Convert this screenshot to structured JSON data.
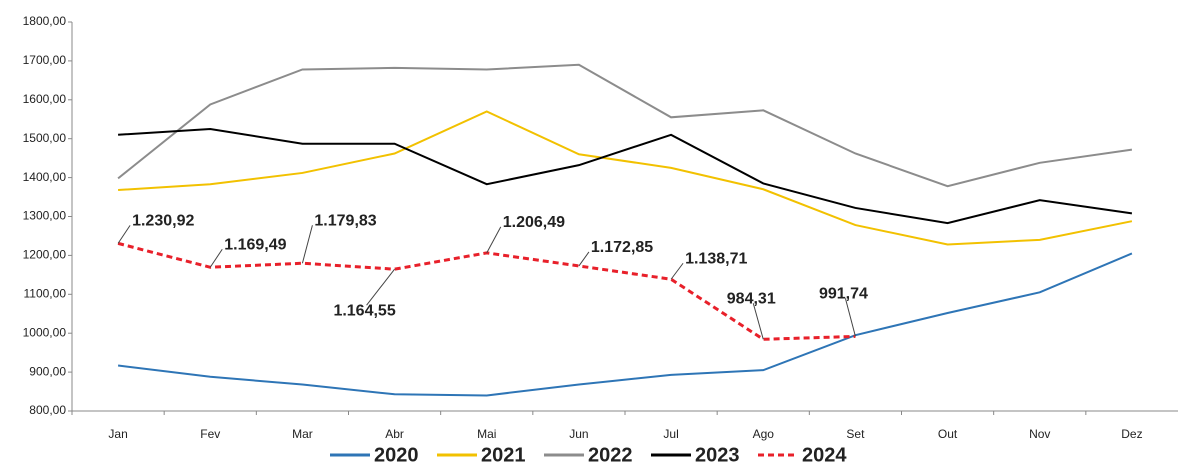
{
  "chart_data": {
    "type": "line",
    "categories": [
      "Jan",
      "Fev",
      "Mar",
      "Abr",
      "Mai",
      "Jun",
      "Jul",
      "Ago",
      "Set",
      "Out",
      "Nov",
      "Dez"
    ],
    "ylim": [
      800,
      1800
    ],
    "yticks": [
      {
        "value": 800,
        "label": "800,00"
      },
      {
        "value": 900,
        "label": "900,00"
      },
      {
        "value": 1000,
        "label": "1000,00"
      },
      {
        "value": 1100,
        "label": "1100,00"
      },
      {
        "value": 1200,
        "label": "1200,00"
      },
      {
        "value": 1300,
        "label": "1300,00"
      },
      {
        "value": 1400,
        "label": "1400,00"
      },
      {
        "value": 1500,
        "label": "1500,00"
      },
      {
        "value": 1600,
        "label": "1600,00"
      },
      {
        "value": 1700,
        "label": "1700,00"
      },
      {
        "value": 1800,
        "label": "1800,00"
      }
    ],
    "grid": false,
    "series": [
      {
        "name": "2020",
        "color": "#2e75b6",
        "line_style": "solid",
        "values": [
          917,
          888,
          868,
          843,
          840,
          868,
          893,
          905,
          995,
          1052,
          1105,
          1205
        ]
      },
      {
        "name": "2021",
        "color": "#f2c100",
        "line_style": "solid",
        "values": [
          1368,
          1383,
          1412,
          1462,
          1570,
          1460,
          1425,
          1370,
          1278,
          1228,
          1240,
          1288
        ]
      },
      {
        "name": "2022",
        "color": "#8c8c8c",
        "line_style": "solid",
        "values": [
          1398,
          1588,
          1678,
          1682,
          1678,
          1690,
          1555,
          1573,
          1462,
          1378,
          1438,
          1472
        ]
      },
      {
        "name": "2023",
        "color": "#000000",
        "line_style": "solid",
        "values": [
          1510,
          1525,
          1487,
          1487,
          1383,
          1432,
          1510,
          1385,
          1322,
          1283,
          1342,
          1308
        ]
      },
      {
        "name": "2024",
        "color": "#e8202a",
        "line_style": "dashed",
        "values": [
          1230.92,
          1169.49,
          1179.83,
          1164.55,
          1206.49,
          1172.85,
          1138.71,
          984.31,
          991.74,
          null,
          null,
          null
        ],
        "value_labels": [
          "1.230,92",
          "1.169,49",
          "1.179,83",
          "1.164,55",
          "1.206,49",
          "1.172,85",
          "1.138,71",
          "984,31",
          "991,74",
          null,
          null,
          null
        ]
      }
    ]
  }
}
